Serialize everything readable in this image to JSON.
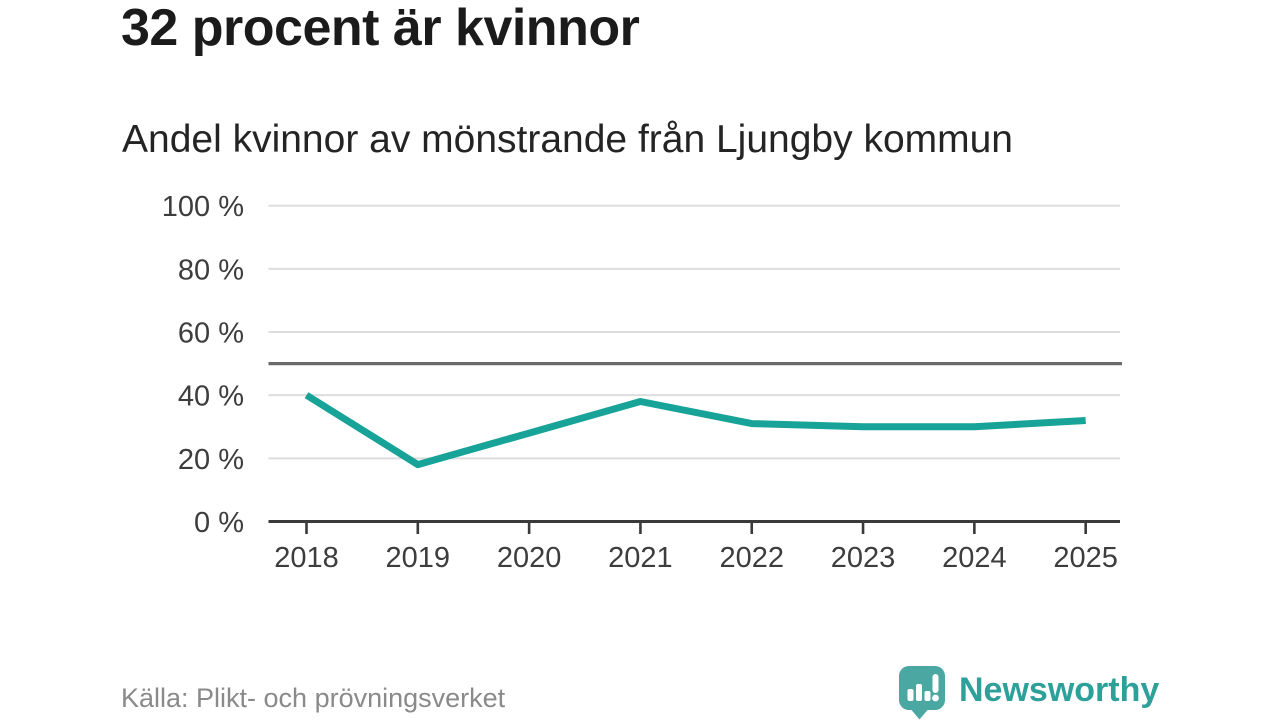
{
  "header": {
    "title": "32 procent är kvinnor",
    "subtitle": "Andel kvinnor av mönstrande från Ljungby kommun"
  },
  "chart_data": {
    "type": "line",
    "title": "32 procent är kvinnor",
    "subtitle": "Andel kvinnor av mönstrande från Ljungby kommun",
    "categories": [
      "2018",
      "2019",
      "2020",
      "2021",
      "2022",
      "2023",
      "2024",
      "2025"
    ],
    "series": [
      {
        "name": "Andel kvinnor av mönstrande från Ljungby kommun",
        "values": [
          40,
          18,
          28,
          38,
          31,
          30,
          30,
          32
        ]
      }
    ],
    "unit": "%",
    "xlabel": "",
    "ylabel": "",
    "ylim": [
      0,
      100
    ],
    "yticks": [
      0,
      20,
      40,
      60,
      80,
      100
    ],
    "ytick_labels": [
      "0 %",
      "20 %",
      "40 %",
      "60 %",
      "80 %",
      "100 %"
    ],
    "reference_line": 50,
    "grid": true,
    "legend": "none",
    "colors": {
      "line": "#17a398",
      "grid": "#dddddd",
      "reference": "#6a6a6a",
      "axis": "#3a3a3a",
      "tick_text": "#3d3d3d"
    }
  },
  "footer": {
    "source": "Källa: Plikt- och prövningsverket",
    "logo_text": "Newsworthy",
    "logo_color": "#2ea09a",
    "logo_icon_color": "#4aa7a2"
  }
}
